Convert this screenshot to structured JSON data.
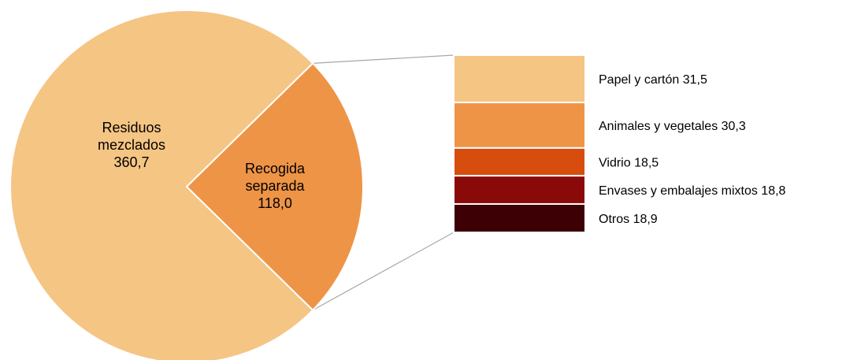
{
  "chart_data": {
    "type": "bar-of-pie",
    "pie": {
      "slices": [
        {
          "label_lines": [
            "Residuos",
            "mezclados"
          ],
          "value": 360.7,
          "value_text": "360,7",
          "color": "#F5C584"
        },
        {
          "label_lines": [
            "Recogida",
            "separada"
          ],
          "value": 118.0,
          "value_text": "118,0",
          "color": "#EE9446"
        }
      ]
    },
    "breakdown": {
      "items": [
        {
          "label": "Papel y cartón",
          "value": 31.5,
          "value_text": "31,5",
          "color": "#F5C584"
        },
        {
          "label": "Animales y vegetales",
          "value": 30.3,
          "value_text": "30,3",
          "color": "#EE9446"
        },
        {
          "label": "Vidrio",
          "value": 18.5,
          "value_text": "18,5",
          "color": "#D64D0E"
        },
        {
          "label": "Envases y embalajes mixtos",
          "value": 18.8,
          "value_text": "18,8",
          "color": "#8A0A0A"
        },
        {
          "label": "Otros",
          "value": 18.9,
          "value_text": "18,9",
          "color": "#3D0004"
        }
      ]
    },
    "connector_color": "#A6A6A6"
  }
}
